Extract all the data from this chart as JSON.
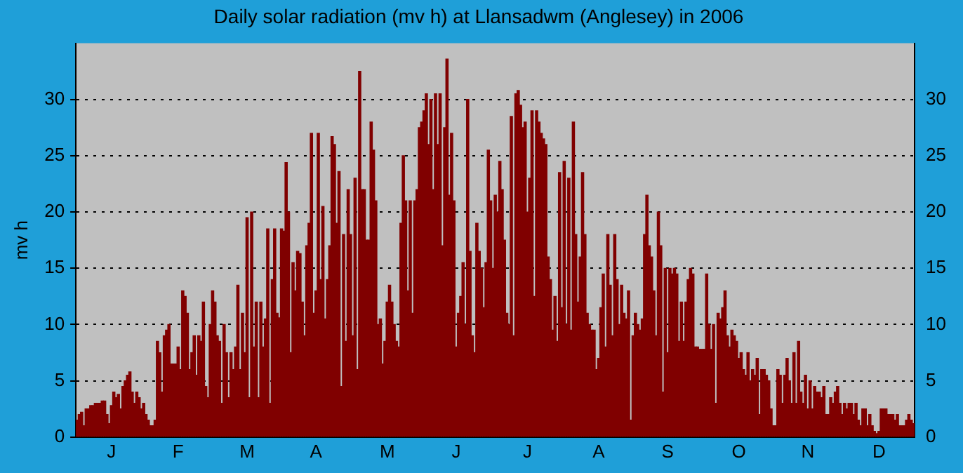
{
  "chart_data": {
    "type": "bar",
    "title": "Daily solar radiation (mv h) at Llansadwm (Anglesey) in 2006",
    "ylabel": "mv h",
    "categories": [
      null,
      null,
      null,
      null,
      null,
      null,
      null,
      null,
      null,
      null,
      null,
      null,
      null,
      null,
      null,
      "J",
      null,
      null,
      null,
      null,
      null,
      null,
      null,
      null,
      null,
      null,
      null,
      null,
      null,
      null,
      null,
      null,
      null,
      null,
      null,
      null,
      null,
      null,
      null,
      null,
      null,
      null,
      null,
      null,
      "F",
      null,
      null,
      null,
      null,
      null,
      null,
      null,
      null,
      null,
      null,
      null,
      null,
      null,
      null,
      null,
      null,
      null,
      null,
      null,
      null,
      null,
      null,
      null,
      null,
      null,
      null,
      null,
      null,
      null,
      "M",
      null,
      null,
      null,
      null,
      null,
      null,
      null,
      null,
      null,
      null,
      null,
      null,
      null,
      null,
      null,
      null,
      null,
      null,
      null,
      null,
      null,
      null,
      null,
      null,
      null,
      null,
      null,
      null,
      null,
      "A",
      null,
      null,
      null,
      null,
      null,
      null,
      null,
      null,
      null,
      null,
      null,
      null,
      null,
      null,
      null,
      null,
      null,
      null,
      null,
      null,
      null,
      null,
      null,
      null,
      null,
      null,
      null,
      null,
      null,
      null,
      "M",
      null,
      null,
      null,
      null,
      null,
      null,
      null,
      null,
      null,
      null,
      null,
      null,
      null,
      null,
      null,
      null,
      null,
      null,
      null,
      null,
      null,
      null,
      null,
      null,
      null,
      null,
      null,
      null,
      null,
      "J",
      null,
      null,
      null,
      null,
      null,
      null,
      null,
      null,
      null,
      null,
      null,
      null,
      null,
      null,
      null,
      null,
      null,
      null,
      null,
      null,
      null,
      null,
      null,
      null,
      null,
      null,
      null,
      null,
      null,
      null,
      "J",
      null,
      null,
      null,
      null,
      null,
      null,
      null,
      null,
      null,
      null,
      null,
      null,
      null,
      null,
      null,
      null,
      null,
      null,
      null,
      null,
      null,
      null,
      null,
      null,
      null,
      null,
      null,
      null,
      null,
      null,
      "A",
      null,
      null,
      null,
      null,
      null,
      null,
      null,
      null,
      null,
      null,
      null,
      null,
      null,
      null,
      null,
      null,
      null,
      null,
      null,
      null,
      null,
      null,
      null,
      null,
      null,
      null,
      null,
      null,
      null,
      "S",
      null,
      null,
      null,
      null,
      null,
      null,
      null,
      null,
      null,
      null,
      null,
      null,
      null,
      null,
      null,
      null,
      null,
      null,
      null,
      null,
      null,
      null,
      null,
      null,
      null,
      null,
      null,
      null,
      null,
      null,
      "O",
      null,
      null,
      null,
      null,
      null,
      null,
      null,
      null,
      null,
      null,
      null,
      null,
      null,
      null,
      null,
      null,
      null,
      null,
      null,
      null,
      null,
      null,
      null,
      null,
      null,
      null,
      null,
      null,
      null,
      "N",
      null,
      null,
      null,
      null,
      null,
      null,
      null,
      null,
      null,
      null,
      null,
      null,
      null,
      null,
      null,
      null,
      null,
      null,
      null,
      null,
      null,
      null,
      null,
      null,
      null,
      null,
      null,
      null,
      null,
      null,
      "D",
      null,
      null,
      null,
      null,
      null,
      null,
      null,
      null,
      null,
      null,
      null,
      null,
      null,
      null,
      null
    ],
    "values": [
      1.5,
      2,
      2.2,
      1,
      2.5,
      2.5,
      2.8,
      2.8,
      3,
      3,
      3,
      3.2,
      3.2,
      2,
      1.2,
      2.8,
      4,
      3.5,
      3.8,
      2.5,
      4.5,
      5,
      5.5,
      5.8,
      4,
      3,
      4,
      3.5,
      2.5,
      3,
      2,
      1.5,
      1,
      1,
      1.5,
      8.5,
      7.5,
      4,
      9,
      9.5,
      10,
      6.5,
      6.5,
      6.5,
      8,
      6,
      13,
      12.5,
      11,
      6,
      7.5,
      9,
      5.5,
      9,
      8.5,
      12,
      4.5,
      3.5,
      10,
      13,
      12,
      9,
      8.5,
      3,
      10,
      7.5,
      3.5,
      7.5,
      6,
      8,
      13.5,
      6,
      11,
      7.5,
      19.5,
      3.5,
      20,
      8,
      12,
      3.5,
      12,
      8,
      10.5,
      18.5,
      3,
      14,
      18.5,
      11,
      10.6,
      18.5,
      18.3,
      24.4,
      20,
      7.5,
      15.5,
      13,
      16.5,
      16.3,
      12,
      9,
      17,
      19,
      27,
      11,
      13,
      27,
      14,
      20.5,
      10.5,
      14,
      17,
      26.7,
      26,
      19,
      23.6,
      4.5,
      18,
      8.5,
      22,
      18,
      9,
      23,
      6,
      32.5,
      22,
      22,
      17.5,
      17.5,
      28,
      25.5,
      21,
      10,
      10.5,
      6.5,
      8.5,
      12,
      13.5,
      12,
      10,
      8.5,
      8,
      19,
      25,
      21,
      13,
      21,
      11,
      21,
      22,
      27.5,
      28,
      29,
      30.5,
      26,
      30,
      22,
      30.5,
      26,
      30.5,
      17,
      27.5,
      33.6,
      21.5,
      27,
      21,
      8,
      11,
      12.5,
      15.5,
      10,
      30,
      16.5,
      9,
      7.5,
      19,
      16.5,
      15,
      11.5,
      15.5,
      25.5,
      21,
      15,
      21.5,
      20,
      24.5,
      22,
      17.5,
      11,
      10,
      28.5,
      9,
      30.5,
      30.8,
      29.5,
      27.5,
      28,
      20,
      23,
      29,
      12.5,
      29,
      28,
      27,
      26.5,
      26,
      16,
      14,
      9.5,
      12.5,
      8.5,
      23.5,
      11.5,
      24.5,
      10,
      23,
      9.5,
      28,
      18,
      12,
      16,
      23.5,
      18,
      11,
      10,
      9.5,
      9.5,
      6,
      7,
      11.5,
      14.5,
      8,
      18,
      13.5,
      9,
      18,
      14,
      10,
      13.5,
      11,
      10.5,
      13,
      1.5,
      9,
      11,
      10,
      9.5,
      10.5,
      18,
      21.5,
      17,
      16,
      13,
      9,
      20,
      17,
      4,
      15,
      7.5,
      15,
      14.5,
      15,
      14.5,
      8.5,
      12,
      8.5,
      12,
      14,
      15,
      14.5,
      8,
      8,
      7.8,
      7.8,
      7.8,
      14.5,
      10,
      7.8,
      10,
      3,
      11,
      10.5,
      11.5,
      13,
      9,
      8,
      9.5,
      9,
      8.5,
      7,
      7.5,
      6,
      5.5,
      7.5,
      5,
      6,
      5.5,
      7,
      2,
      6,
      6,
      5.5,
      5,
      2.5,
      1,
      1,
      6,
      5.5,
      3,
      5.5,
      7,
      5,
      3,
      7.5,
      3,
      8.5,
      4,
      3,
      5.5,
      2.5,
      5,
      2.5,
      4.5,
      4,
      4,
      3.5,
      4.5,
      2,
      2,
      3.5,
      3,
      4,
      4.5,
      3,
      2,
      3,
      2.5,
      3,
      3,
      2,
      3,
      1.5,
      1,
      2.5,
      2.5,
      1,
      2,
      1,
      0.5,
      0.3,
      0.5,
      2.5,
      2.5,
      2.5,
      2,
      2,
      2,
      1.5,
      2,
      1,
      1,
      1,
      1.5,
      2,
      1.5,
      1.2
    ],
    "color": "#800000",
    "ylim": [
      0,
      35
    ],
    "yticks": [
      0,
      5,
      10,
      15,
      20,
      25,
      30
    ],
    "y2lim": [
      0,
      35
    ],
    "y2ticks": [
      0,
      5,
      10,
      15,
      20,
      25,
      30
    ],
    "grid": "y",
    "legend": false
  }
}
